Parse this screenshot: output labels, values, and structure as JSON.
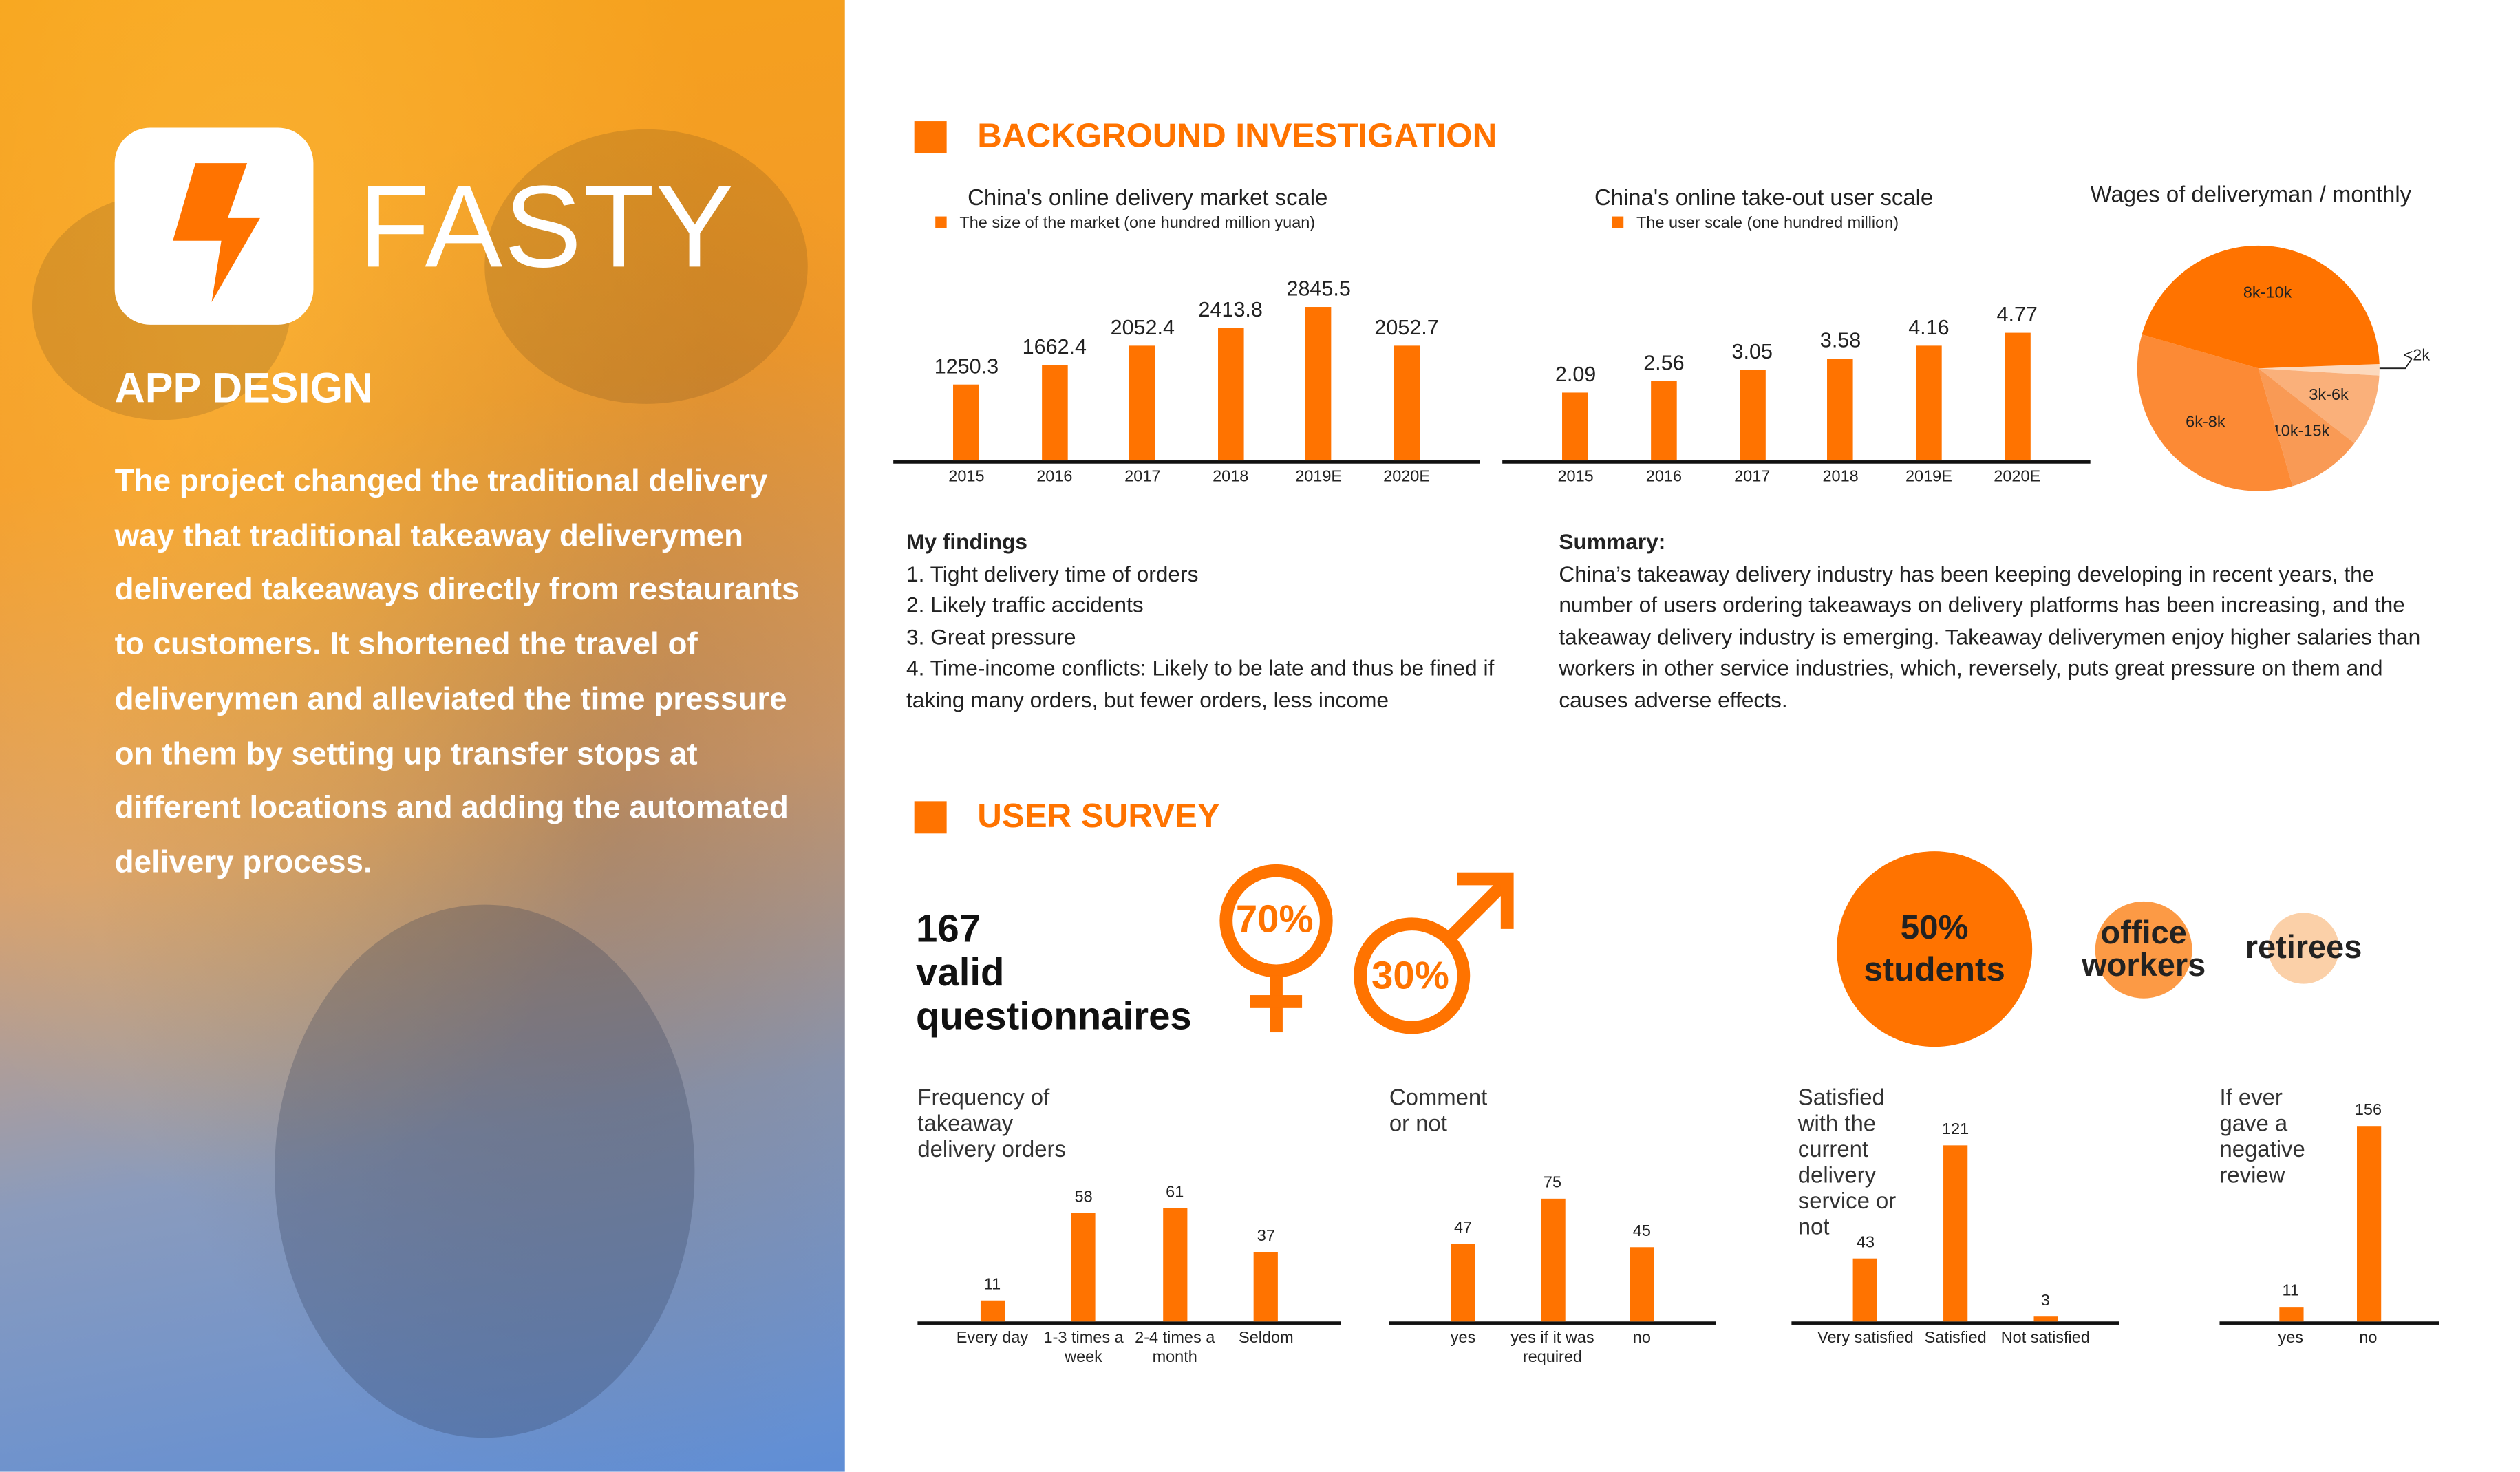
{
  "brand": {
    "name": "FASTY",
    "subtitle": "APP DESIGN",
    "description": "The project changed the traditional delivery way that traditional takeaway deliverymen delivered takeaways directly from restaurants to customers. It shortened the travel of deliverymen and alleviated the time pressure on them by setting up transfer stops at different locations and adding the automated delivery process."
  },
  "colors": {
    "accent": "#ff7300"
  },
  "background": {
    "heading": "BACKGROUND INVESTIGATION",
    "findings": {
      "title": "My findings",
      "items": [
        "1. Tight delivery time of orders",
        "2. Likely traffic accidents",
        "3. Great pressure",
        "4. Time-income conflicts: Likely to be late and thus be fined if taking many orders, but fewer orders, less income"
      ]
    },
    "summary": {
      "title": "Summary:",
      "text": "China’s takeaway delivery industry has been keeping developing in recent years, the number of users ordering takeaways on delivery platforms has been increasing, and the takeaway delivery industry is emerging. Takeaway deliverymen enjoy higher salaries than workers in other service industries, which, reversely, puts great pressure on them and causes adverse effects."
    }
  },
  "survey": {
    "heading": "USER SURVEY",
    "count": "167",
    "count_label1": "valid",
    "count_label2": "questionnaires",
    "female_pct": "70%",
    "male_pct": "30%",
    "students": "50%",
    "students_label": "students",
    "office": "office workers",
    "retirees": "retirees"
  },
  "chart_data": [
    {
      "type": "bar",
      "title": "China's online delivery market scale",
      "legend": "The size of the market (one hundred million yuan)",
      "categories": [
        "2015",
        "2016",
        "2017",
        "2018",
        "2019E",
        "2020E"
      ],
      "values": [
        1250.3,
        1662.4,
        2052.4,
        2413.8,
        2845.5,
        2052.7
      ],
      "ylim": [
        -300,
        3200
      ]
    },
    {
      "type": "bar",
      "title": "China's online take-out user scale",
      "legend": "The user scale (one hundred million)",
      "categories": [
        "2015",
        "2016",
        "2017",
        "2018",
        "2019E",
        "2020E"
      ],
      "values": [
        2.09,
        2.56,
        3.05,
        3.58,
        4.16,
        4.77
      ],
      "ylim": [
        -1,
        6
      ]
    },
    {
      "type": "pie",
      "title": "Wages of deliveryman / monthly",
      "labels": [
        "<2k",
        "3k-6k",
        "10k-15k",
        "6k-8k",
        "8k-10k"
      ],
      "values": [
        1.5,
        9.5,
        10,
        34,
        45
      ],
      "colors": [
        "#fcd9bd",
        "#fab07a",
        "#f99a55",
        "#fc8a35",
        "#ff7300"
      ]
    },
    {
      "type": "bar",
      "title": "Frequency of takeaway delivery orders",
      "categories": [
        "Every day",
        "1-3 times a week",
        "2-4 times a month",
        "Seldom"
      ],
      "values": [
        11,
        58,
        61,
        37
      ],
      "ylim": [
        0,
        113
      ]
    },
    {
      "type": "bar",
      "title": "Comment or not",
      "categories": [
        "yes",
        "yes if it was required",
        "no"
      ],
      "values": [
        47,
        75,
        45
      ],
      "ylim": [
        0,
        128
      ]
    },
    {
      "type": "bar",
      "title": "Satisfied with the current delivery service or not",
      "categories": [
        "Very satisfied",
        "Satisfied",
        "Not satisfied"
      ],
      "values": [
        43,
        121,
        3
      ],
      "ylim": [
        0,
        144
      ]
    },
    {
      "type": "bar",
      "title": "If ever gave a negative review",
      "categories": [
        "yes",
        "no"
      ],
      "values": [
        11,
        156
      ],
      "ylim": [
        0,
        168
      ]
    }
  ]
}
